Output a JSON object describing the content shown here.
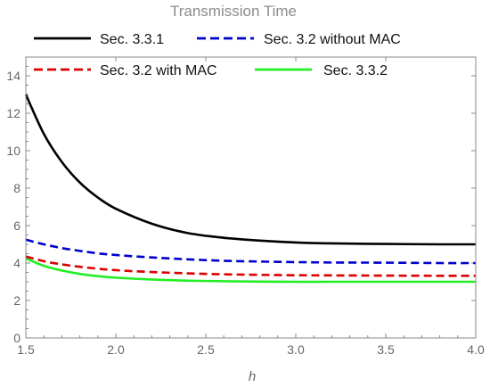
{
  "chart_data": {
    "type": "line",
    "title": "Transmission Time",
    "xlabel": "h",
    "ylabel": "",
    "xlim": [
      1.5,
      4.0
    ],
    "ylim": [
      0,
      15
    ],
    "x_ticks": [
      1.5,
      2.0,
      2.5,
      3.0,
      3.5,
      4.0
    ],
    "x_tick_labels": [
      "1.5",
      "2.0",
      "2.5",
      "3.0",
      "3.5",
      "4.0"
    ],
    "y_ticks": [
      0,
      2,
      4,
      6,
      8,
      10,
      12,
      14
    ],
    "y_tick_labels": [
      "0",
      "2",
      "4",
      "6",
      "8",
      "10",
      "12",
      "14"
    ],
    "grid": false,
    "legend_position": "top",
    "series": [
      {
        "name": "Sec. 3.3.1",
        "color": "#000000",
        "dash": "solid",
        "x": [
          1.5,
          1.6,
          1.7,
          1.8,
          1.9,
          2.0,
          2.2,
          2.4,
          2.6,
          2.8,
          3.0,
          3.2,
          3.5,
          3.8,
          4.0
        ],
        "y": [
          13.0,
          10.9,
          9.4,
          8.3,
          7.5,
          6.9,
          6.1,
          5.6,
          5.35,
          5.2,
          5.1,
          5.05,
          5.02,
          5.0,
          5.0
        ]
      },
      {
        "name": "Sec. 3.2 without MAC",
        "color": "#0000cc",
        "dash": "dashed",
        "x": [
          1.5,
          1.6,
          1.7,
          1.8,
          1.9,
          2.0,
          2.2,
          2.4,
          2.6,
          2.8,
          3.0,
          3.2,
          3.5,
          3.8,
          4.0
        ],
        "y": [
          5.25,
          5.0,
          4.8,
          4.65,
          4.52,
          4.43,
          4.3,
          4.2,
          4.12,
          4.08,
          4.05,
          4.03,
          4.02,
          4.0,
          4.0
        ]
      },
      {
        "name": "Sec. 3.2 with MAC",
        "color": "#dd0000",
        "dash": "dashed",
        "x": [
          1.5,
          1.6,
          1.7,
          1.8,
          1.9,
          2.0,
          2.2,
          2.4,
          2.6,
          2.8,
          3.0,
          3.2,
          3.5,
          3.8,
          4.0
        ],
        "y": [
          4.35,
          4.1,
          3.93,
          3.8,
          3.7,
          3.62,
          3.52,
          3.45,
          3.4,
          3.37,
          3.35,
          3.34,
          3.33,
          3.32,
          3.32
        ]
      },
      {
        "name": "Sec. 3.3.2",
        "color": "#22ee22",
        "dash": "solid",
        "x": [
          1.5,
          1.6,
          1.7,
          1.8,
          1.9,
          2.0,
          2.2,
          2.4,
          2.6,
          2.8,
          3.0,
          3.2,
          3.5,
          3.8,
          4.0
        ],
        "y": [
          4.25,
          3.85,
          3.6,
          3.42,
          3.3,
          3.22,
          3.12,
          3.06,
          3.03,
          3.01,
          3.0,
          3.0,
          3.0,
          3.0,
          3.0
        ]
      }
    ]
  }
}
